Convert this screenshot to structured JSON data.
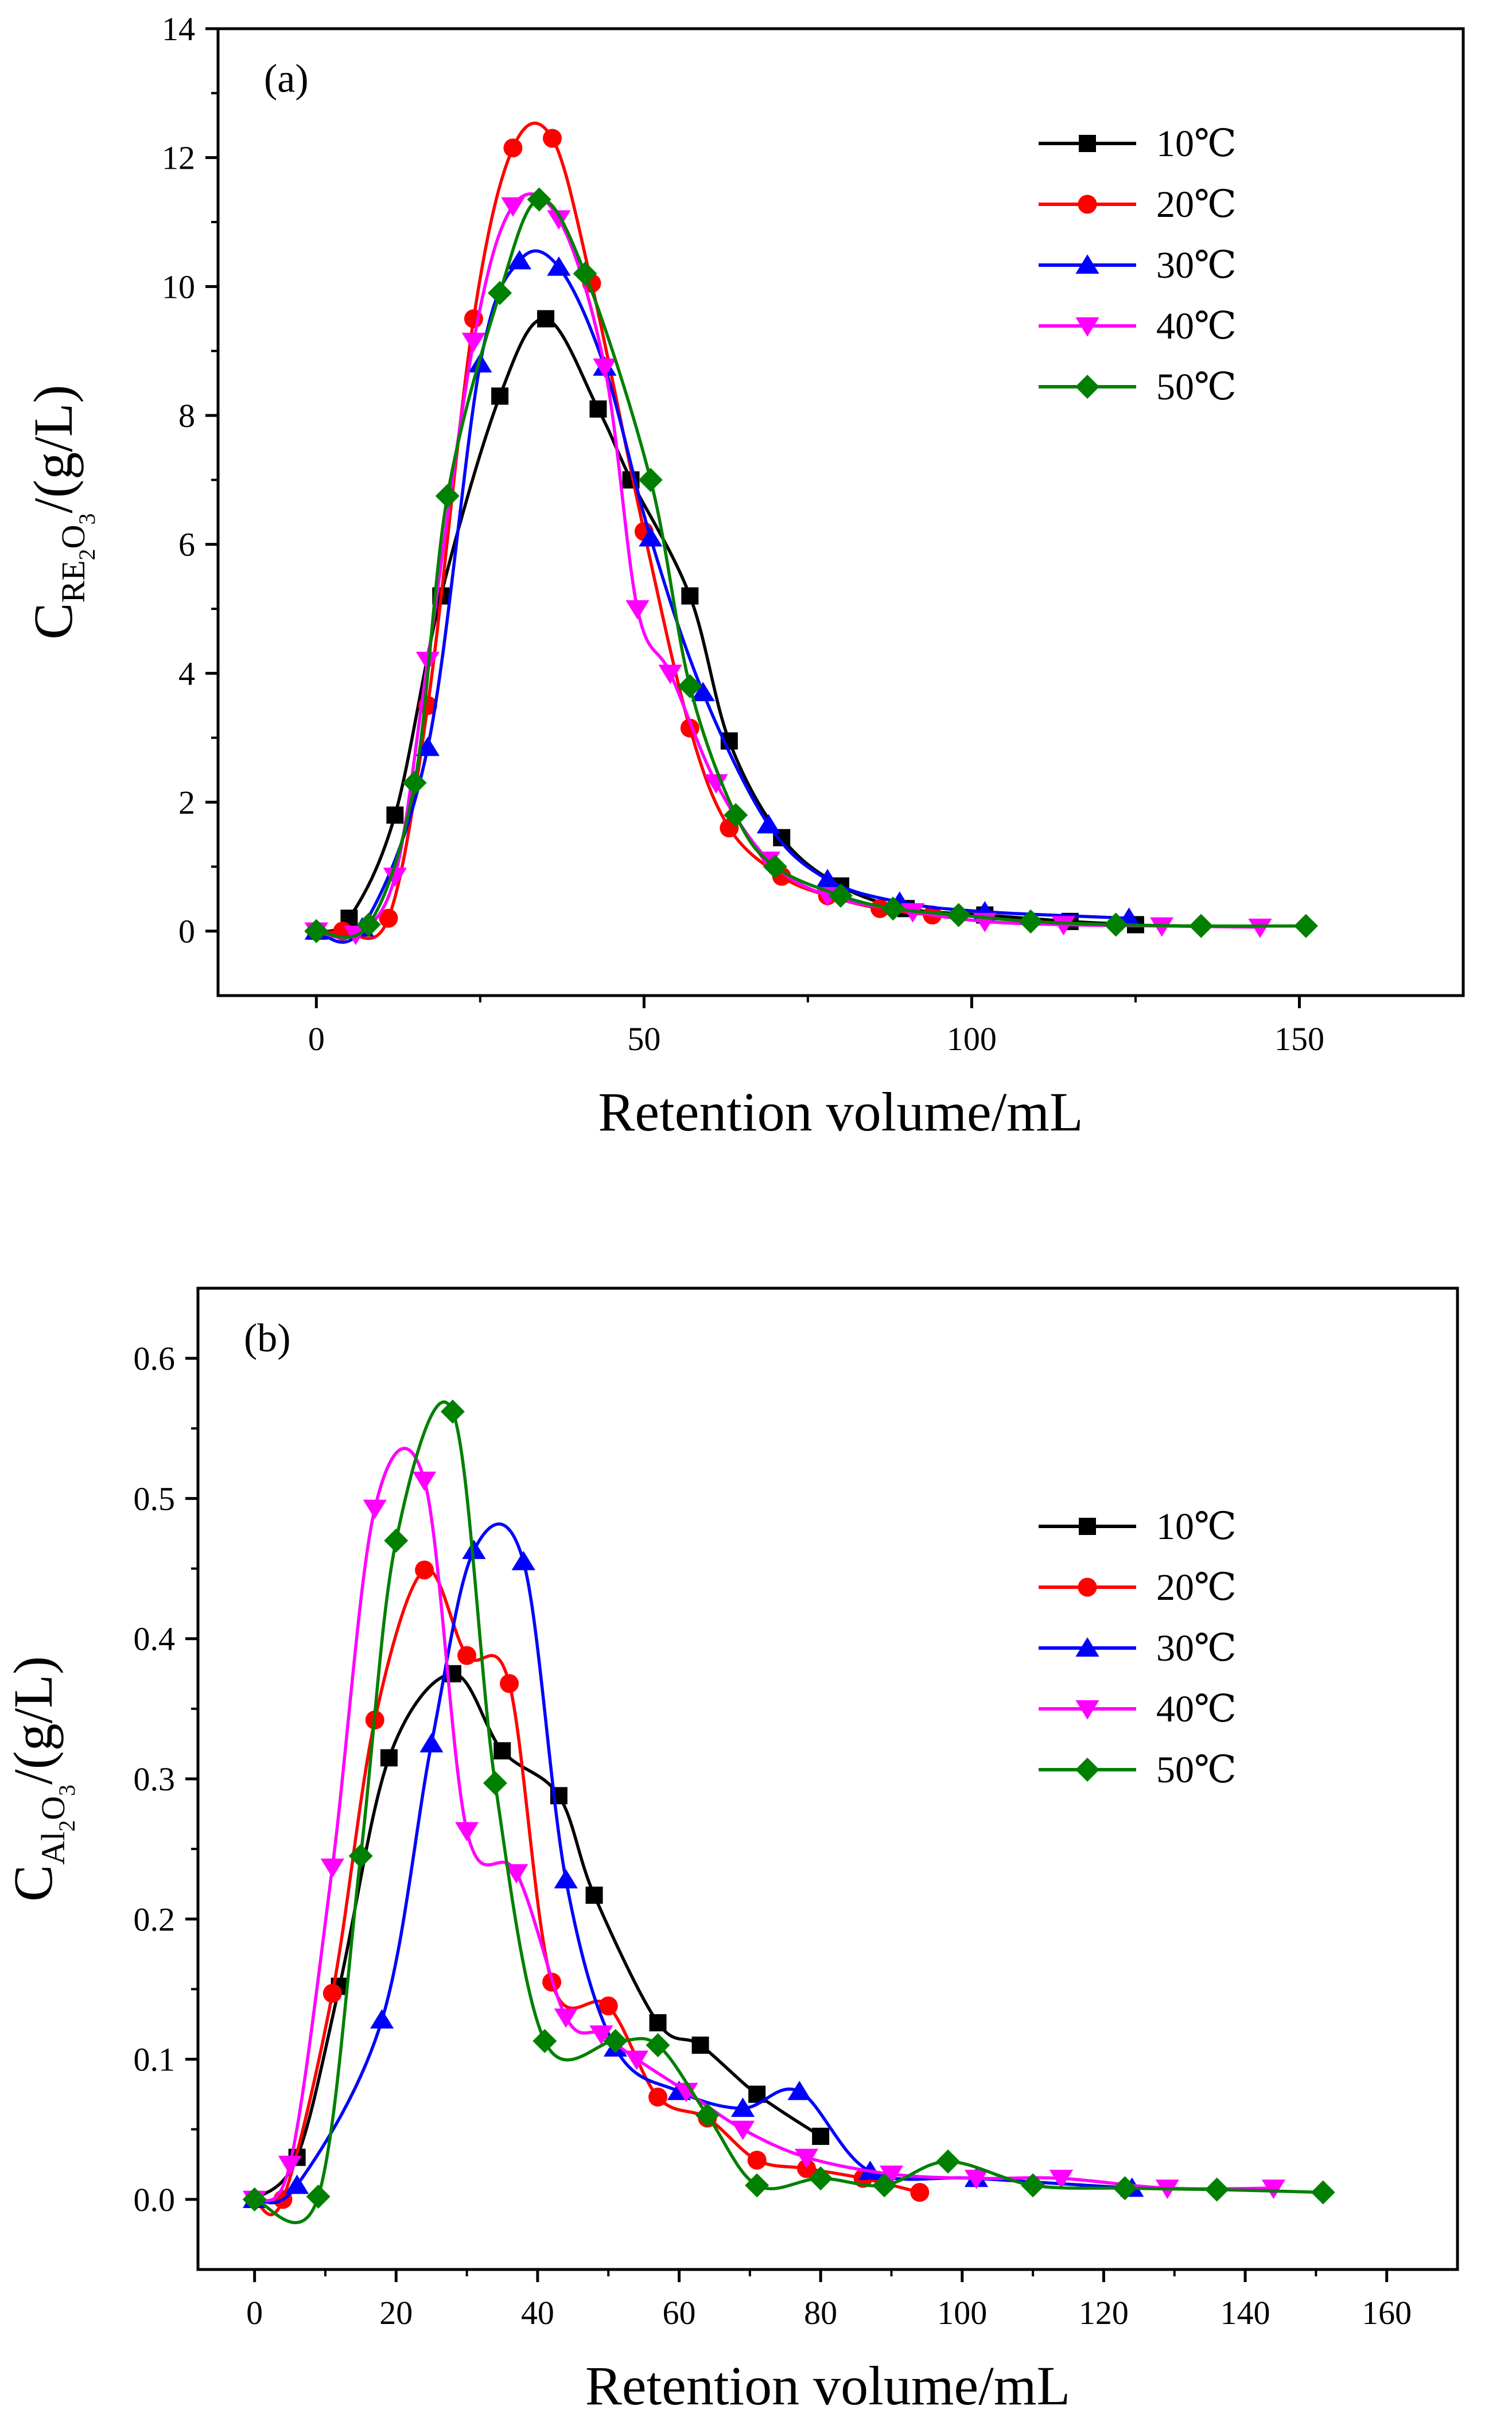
{
  "chart_data": [
    {
      "type": "scatter",
      "panel_label": "(a)",
      "xlabel": "Retention volume/mL",
      "ylabel": {
        "main": "C",
        "sub": "RE",
        "sub2": "2",
        "sub3": "O",
        "sub4": "3",
        "unit": "/(g/L)"
      },
      "xlim": [
        -15,
        175
      ],
      "ylim": [
        -1,
        14
      ],
      "xticks": [
        0,
        50,
        100,
        150
      ],
      "yticks": [
        0,
        2,
        4,
        6,
        8,
        10,
        12,
        14
      ],
      "legend_position": "top-right",
      "grid": false,
      "series": [
        {
          "name": "10℃",
          "color": "#000000",
          "marker": "square",
          "x": [
            0,
            5,
            12,
            19,
            28,
            35,
            43,
            48,
            57,
            63,
            71,
            80,
            90,
            102,
            115,
            125
          ],
          "y": [
            0,
            0.2,
            1.8,
            5.2,
            8.3,
            9.5,
            8.1,
            7.0,
            5.2,
            2.95,
            1.45,
            0.7,
            0.35,
            0.25,
            0.15,
            0.1
          ]
        },
        {
          "name": "20℃",
          "color": "#ff0000",
          "marker": "circle",
          "x": [
            0,
            4,
            11,
            17,
            24,
            30,
            36,
            42,
            50,
            57,
            63,
            71,
            78,
            86,
            94
          ],
          "y": [
            0,
            0.0,
            0.2,
            3.5,
            9.5,
            12.15,
            12.3,
            10.05,
            6.2,
            3.15,
            1.6,
            0.85,
            0.55,
            0.35,
            0.25
          ]
        },
        {
          "name": "30℃",
          "color": "#0000ff",
          "marker": "triangle-up",
          "x": [
            0,
            7,
            17,
            25,
            31,
            37,
            44,
            51,
            59,
            69,
            78,
            89,
            102,
            124
          ],
          "y": [
            0,
            0.05,
            2.85,
            8.8,
            10.4,
            10.3,
            8.75,
            6.1,
            3.7,
            1.65,
            0.8,
            0.45,
            0.3,
            0.2
          ]
        },
        {
          "name": "40℃",
          "color": "#ff00ff",
          "marker": "triangle-down",
          "x": [
            0,
            6,
            12,
            17,
            24,
            30,
            37,
            44,
            49,
            54,
            61,
            69,
            78,
            91,
            102,
            114,
            129,
            144
          ],
          "y": [
            0,
            -0.05,
            0.85,
            4.2,
            9.15,
            11.25,
            11.05,
            8.75,
            5.0,
            4.0,
            2.3,
            1.1,
            0.55,
            0.3,
            0.15,
            0.1,
            0.08,
            0.06
          ]
        },
        {
          "name": "50℃",
          "color": "#008000",
          "marker": "diamond",
          "x": [
            0,
            8,
            15,
            20,
            28,
            34,
            41,
            51,
            57,
            64,
            70,
            80,
            88,
            98,
            109,
            122,
            135,
            151
          ],
          "y": [
            0,
            0.1,
            2.3,
            6.75,
            9.9,
            11.35,
            10.2,
            7.0,
            3.8,
            1.8,
            1.0,
            0.55,
            0.35,
            0.25,
            0.15,
            0.1,
            0.08,
            0.08
          ]
        }
      ]
    },
    {
      "type": "scatter",
      "panel_label": "(b)",
      "xlabel": "Retention volume/mL",
      "ylabel": {
        "main": "C",
        "sub": "Al",
        "sub2": "2",
        "sub3": "O",
        "sub4": "3",
        "unit": "/(g/L)"
      },
      "xlim": [
        -8,
        170
      ],
      "ylim": [
        -0.05,
        0.65
      ],
      "xticks": [
        0,
        20,
        40,
        60,
        80,
        100,
        120,
        140,
        160
      ],
      "yticks": [
        0.0,
        0.1,
        0.2,
        0.3,
        0.4,
        0.5,
        0.6
      ],
      "ytick_labels": [
        "0.0",
        "0.1",
        "0.2",
        "0.3",
        "0.4",
        "0.5",
        "0.6"
      ],
      "legend_position": "top-right",
      "grid": false,
      "series": [
        {
          "name": "10℃",
          "color": "#000000",
          "marker": "square",
          "x": [
            0,
            6,
            12,
            19,
            28,
            35,
            43,
            48,
            57,
            63,
            71,
            80
          ],
          "y": [
            0,
            0.03,
            0.152,
            0.315,
            0.375,
            0.32,
            0.288,
            0.217,
            0.126,
            0.11,
            0.075,
            0.045
          ]
        },
        {
          "name": "20℃",
          "color": "#ff0000",
          "marker": "circle",
          "x": [
            0,
            4,
            11,
            17,
            24,
            30,
            36,
            42,
            50,
            57,
            64,
            71,
            78,
            86,
            94
          ],
          "y": [
            0,
            0.0,
            0.147,
            0.342,
            0.449,
            0.388,
            0.368,
            0.155,
            0.138,
            0.073,
            0.058,
            0.028,
            0.022,
            0.015,
            0.005
          ]
        },
        {
          "name": "30℃",
          "color": "#0000ff",
          "marker": "triangle-up",
          "x": [
            0,
            6,
            18,
            25,
            31,
            38,
            44,
            51,
            60,
            69,
            77,
            87,
            102,
            124
          ],
          "y": [
            0,
            0.01,
            0.128,
            0.325,
            0.463,
            0.455,
            0.228,
            0.108,
            0.077,
            0.065,
            0.077,
            0.02,
            0.015,
            0.008
          ]
        },
        {
          "name": "40℃",
          "color": "#ff00ff",
          "marker": "triangle-down",
          "x": [
            0,
            5,
            11,
            17,
            24,
            30,
            37,
            44,
            49,
            54,
            61,
            69,
            78,
            90,
            102,
            114,
            129,
            144
          ],
          "y": [
            0,
            0.025,
            0.237,
            0.493,
            0.513,
            0.263,
            0.233,
            0.13,
            0.118,
            0.1,
            0.077,
            0.05,
            0.03,
            0.018,
            0.015,
            0.015,
            0.008,
            0.008
          ]
        },
        {
          "name": "50℃",
          "color": "#008000",
          "marker": "diamond",
          "x": [
            0,
            9,
            15,
            20,
            28,
            34,
            41,
            51,
            57,
            64,
            71,
            80,
            89,
            98,
            110,
            123,
            136,
            151
          ],
          "y": [
            0,
            0.002,
            0.245,
            0.47,
            0.562,
            0.297,
            0.113,
            0.113,
            0.11,
            0.06,
            0.01,
            0.015,
            0.01,
            0.027,
            0.01,
            0.008,
            0.007,
            0.005
          ]
        }
      ]
    }
  ]
}
